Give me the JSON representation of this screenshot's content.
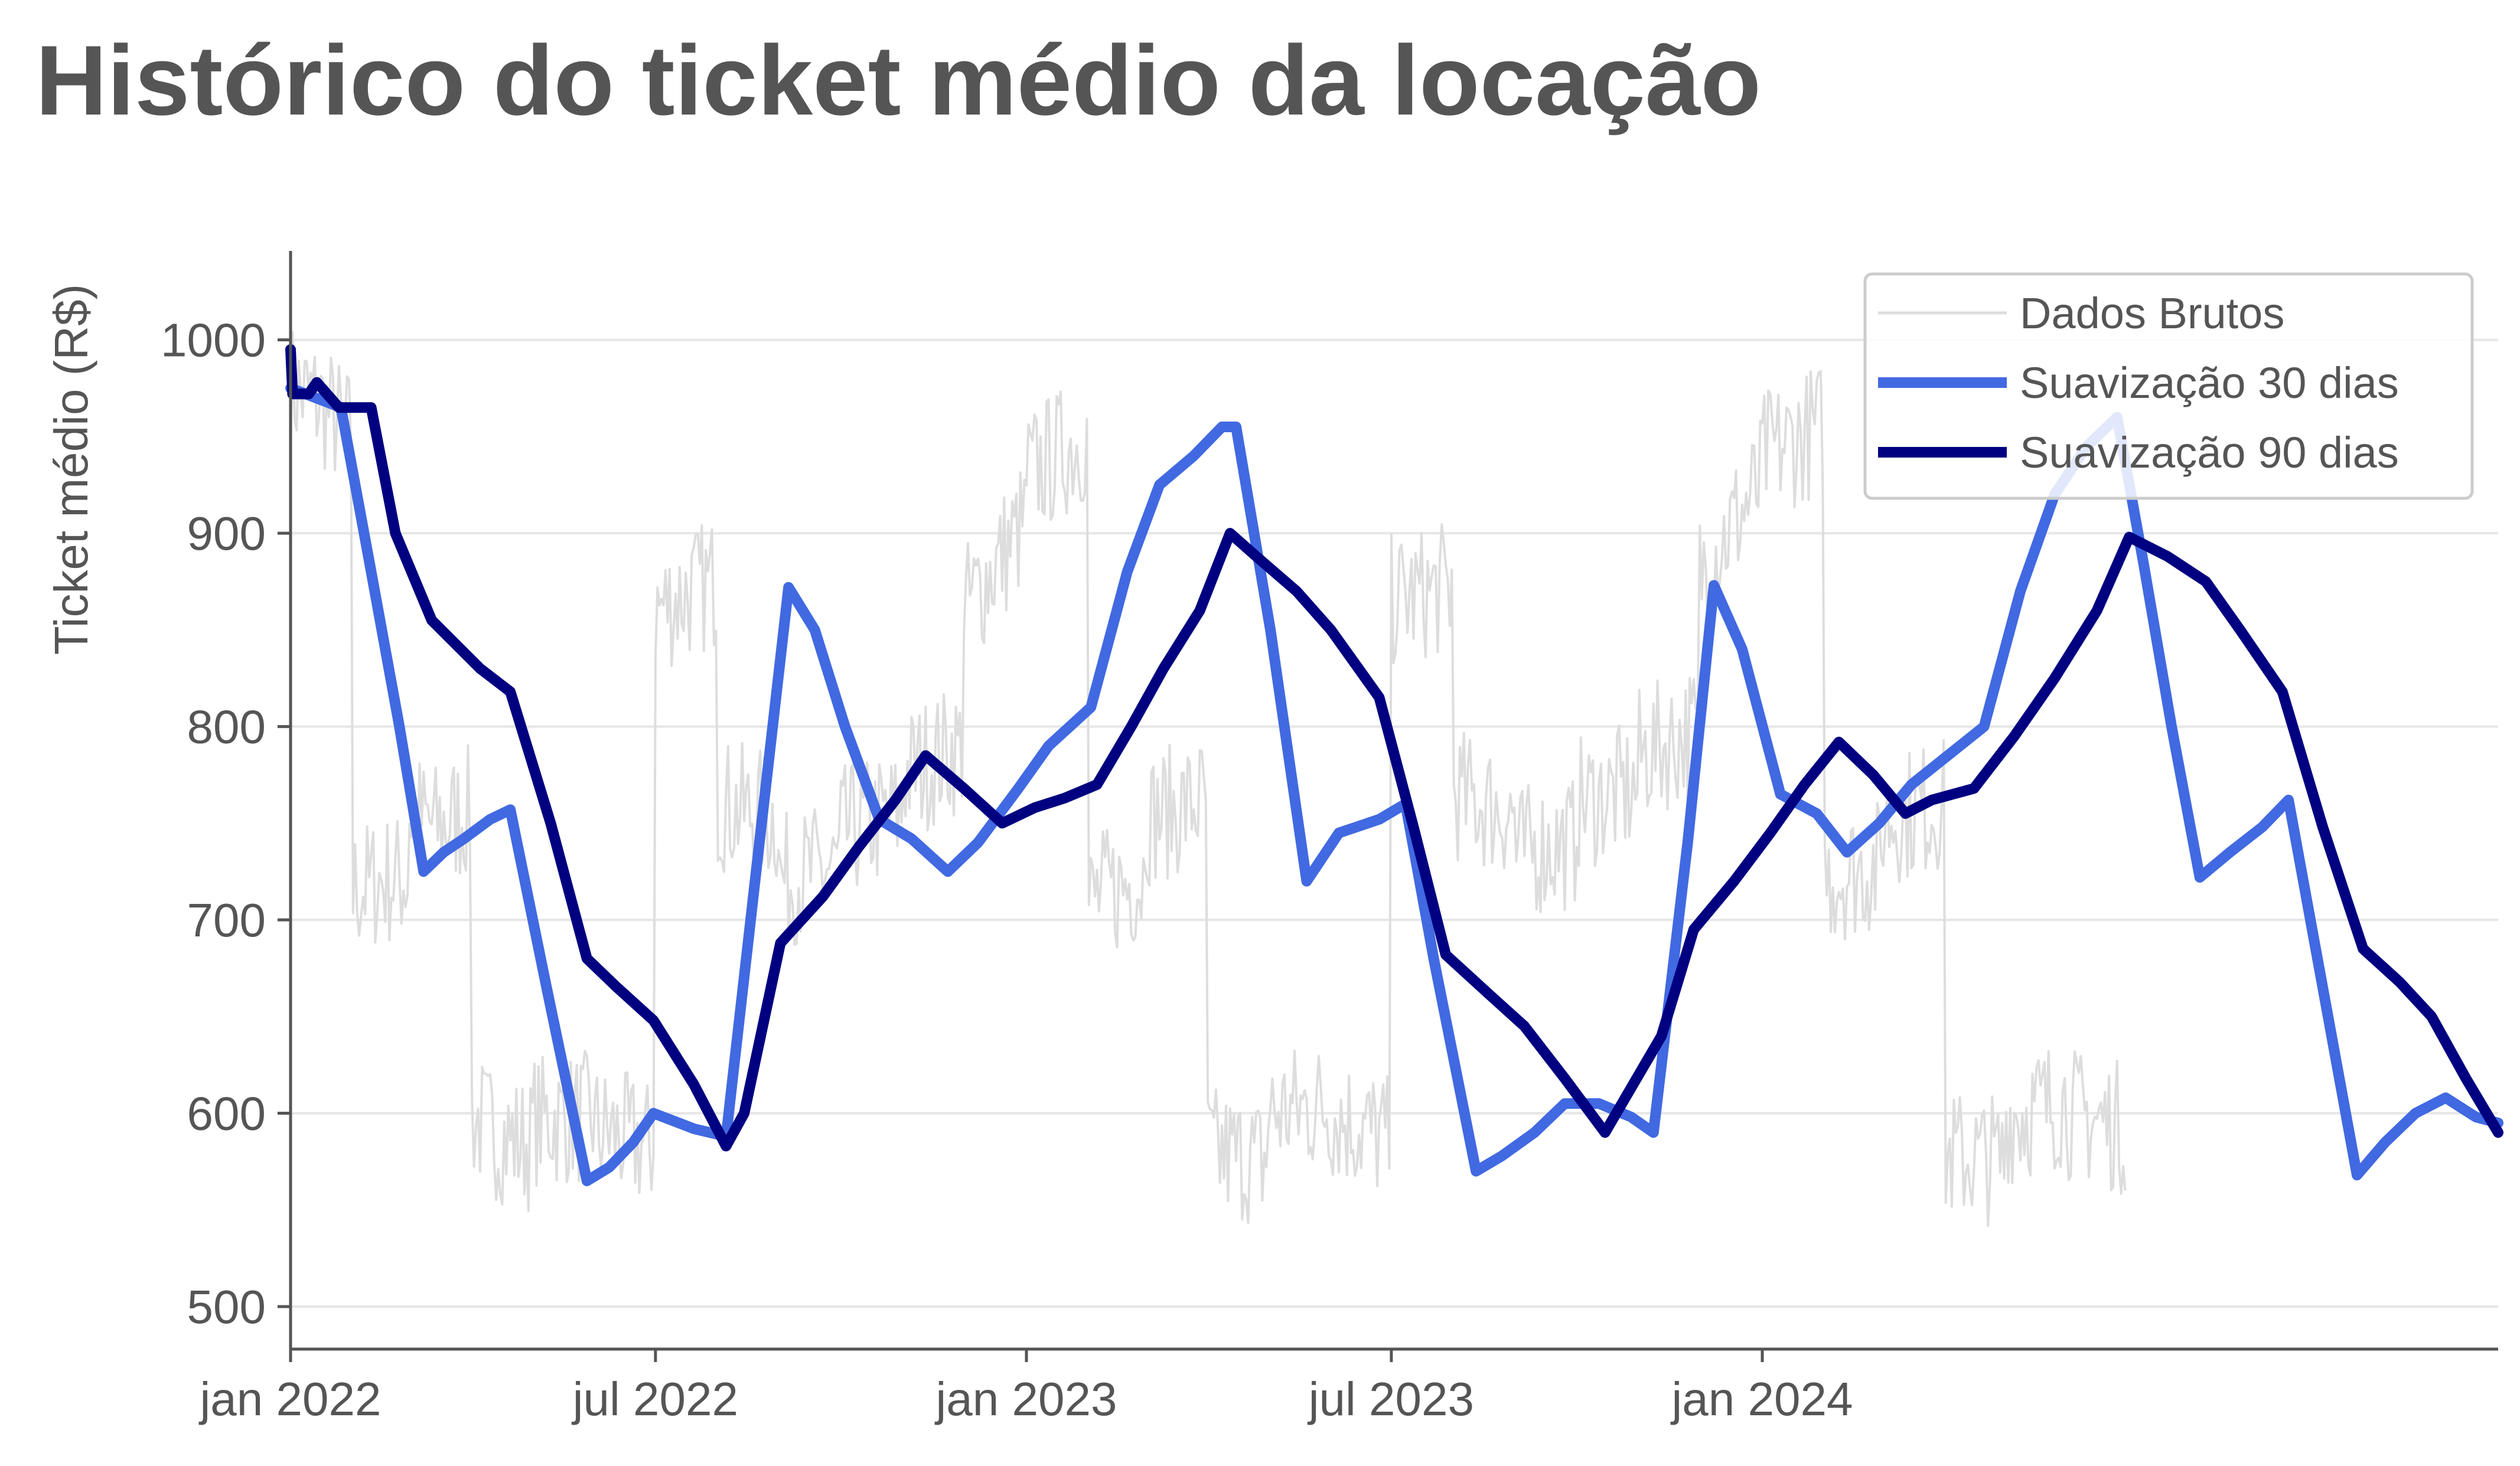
{
  "chart_data": {
    "type": "line",
    "title": "Histórico do ticket médio da locação",
    "xlabel": "",
    "ylabel": "Ticket médio (R$)",
    "ylim": [
      478,
      1046
    ],
    "x_range": [
      "2022-01-01",
      "2024-12-31"
    ],
    "grid": "horizontal",
    "legend_position": "top-right",
    "yticks": [
      500,
      600,
      700,
      800,
      900,
      1000
    ],
    "xticks": [
      {
        "date": "2022-01-01",
        "label": "jan 2022"
      },
      {
        "date": "2022-07-01",
        "label": "jul 2022"
      },
      {
        "date": "2023-01-01",
        "label": "jan 2023"
      },
      {
        "date": "2023-07-01",
        "label": "jul 2023"
      },
      {
        "date": "2024-01-01",
        "label": "jan 2024"
      }
    ],
    "series": [
      {
        "name": "Dados Brutos",
        "color": "#dddddd",
        "style": "thin-noisy",
        "points": [
          [
            "2022-01-01",
            975
          ],
          [
            "2022-01-15",
            968
          ],
          [
            "2022-01-31",
            950
          ],
          [
            "2022-02-01",
            715
          ],
          [
            "2022-02-14",
            720
          ],
          [
            "2022-02-28",
            722
          ],
          [
            "2022-03-01",
            755
          ],
          [
            "2022-03-14",
            748
          ],
          [
            "2022-03-31",
            756
          ],
          [
            "2022-04-01",
            598
          ],
          [
            "2022-04-15",
            588
          ],
          [
            "2022-04-30",
            584
          ],
          [
            "2022-05-01",
            596
          ],
          [
            "2022-05-31",
            598
          ],
          [
            "2022-06-01",
            592
          ],
          [
            "2022-06-30",
            582
          ],
          [
            "2022-07-01",
            860
          ],
          [
            "2022-07-15",
            868
          ],
          [
            "2022-07-31",
            875
          ],
          [
            "2022-08-01",
            760
          ],
          [
            "2022-08-31",
            752
          ],
          [
            "2022-09-01",
            720
          ],
          [
            "2022-09-30",
            728
          ],
          [
            "2022-10-01",
            745
          ],
          [
            "2022-10-31",
            755
          ],
          [
            "2022-11-01",
            775
          ],
          [
            "2022-11-30",
            790
          ],
          [
            "2022-12-01",
            860
          ],
          [
            "2022-12-31",
            905
          ],
          [
            "2023-01-01",
            930
          ],
          [
            "2023-01-31",
            950
          ],
          [
            "2023-02-01",
            710
          ],
          [
            "2023-02-28",
            722
          ],
          [
            "2023-03-01",
            752
          ],
          [
            "2023-03-31",
            762
          ],
          [
            "2023-04-01",
            580
          ],
          [
            "2023-04-30",
            575
          ],
          [
            "2023-05-01",
            600
          ],
          [
            "2023-05-31",
            604
          ],
          [
            "2023-06-01",
            600
          ],
          [
            "2023-06-30",
            586
          ],
          [
            "2023-07-01",
            865
          ],
          [
            "2023-07-31",
            872
          ],
          [
            "2023-08-01",
            765
          ],
          [
            "2023-08-31",
            755
          ],
          [
            "2023-09-01",
            735
          ],
          [
            "2023-09-30",
            740
          ],
          [
            "2023-10-01",
            760
          ],
          [
            "2023-10-31",
            768
          ],
          [
            "2023-11-01",
            785
          ],
          [
            "2023-11-30",
            798
          ],
          [
            "2023-12-01",
            880
          ],
          [
            "2023-12-31",
            925
          ],
          [
            "2024-01-01",
            940
          ],
          [
            "2024-01-31",
            955
          ],
          [
            "2024-02-01",
            722
          ],
          [
            "2024-02-29",
            728
          ],
          [
            "2024-03-01",
            752
          ],
          [
            "2024-03-31",
            760
          ],
          [
            "2024-04-01",
            578
          ],
          [
            "2024-04-30",
            576
          ],
          [
            "2024-05-01",
            598
          ],
          [
            "2024-05-31",
            606
          ],
          [
            "2024-06-01",
            600
          ],
          [
            "2024-06-30",
            592
          ]
        ]
      },
      {
        "name": "Suavização 30 dias",
        "color": "#4169e1",
        "points": [
          [
            "2022-01-01",
            975
          ],
          [
            "2022-01-26",
            965
          ],
          [
            "2022-02-10",
            880
          ],
          [
            "2022-02-24",
            800
          ],
          [
            "2022-03-08",
            725
          ],
          [
            "2022-03-18",
            735
          ],
          [
            "2022-03-28",
            742
          ],
          [
            "2022-04-10",
            752
          ],
          [
            "2022-04-20",
            757
          ],
          [
            "2022-05-08",
            665
          ],
          [
            "2022-05-28",
            565
          ],
          [
            "2022-06-08",
            572
          ],
          [
            "2022-06-20",
            585
          ],
          [
            "2022-06-30",
            600
          ],
          [
            "2022-07-20",
            592
          ],
          [
            "2022-08-05",
            588
          ],
          [
            "2022-08-21",
            735
          ],
          [
            "2022-09-05",
            872
          ],
          [
            "2022-09-18",
            850
          ],
          [
            "2022-10-03",
            800
          ],
          [
            "2022-10-20",
            752
          ],
          [
            "2022-11-05",
            742
          ],
          [
            "2022-11-23",
            725
          ],
          [
            "2022-12-08",
            740
          ],
          [
            "2022-12-28",
            768
          ],
          [
            "2023-01-12",
            790
          ],
          [
            "2023-02-02",
            810
          ],
          [
            "2023-02-20",
            880
          ],
          [
            "2023-03-08",
            925
          ],
          [
            "2023-03-25",
            940
          ],
          [
            "2023-04-08",
            955
          ],
          [
            "2023-04-15",
            955
          ],
          [
            "2023-05-02",
            850
          ],
          [
            "2023-05-20",
            720
          ],
          [
            "2023-06-05",
            745
          ],
          [
            "2023-06-25",
            752
          ],
          [
            "2023-07-08",
            760
          ],
          [
            "2023-07-22",
            680
          ],
          [
            "2023-08-12",
            570
          ],
          [
            "2023-08-25",
            578
          ],
          [
            "2023-09-10",
            590
          ],
          [
            "2023-09-25",
            605
          ],
          [
            "2023-10-12",
            605
          ],
          [
            "2023-10-28",
            598
          ],
          [
            "2023-11-08",
            590
          ],
          [
            "2023-11-25",
            740
          ],
          [
            "2023-12-08",
            873
          ],
          [
            "2023-12-22",
            840
          ],
          [
            "2024-01-10",
            765
          ],
          [
            "2024-01-28",
            755
          ],
          [
            "2024-02-12",
            735
          ],
          [
            "2024-02-28",
            750
          ],
          [
            "2024-03-15",
            770
          ],
          [
            "2024-04-02",
            785
          ],
          [
            "2024-04-20",
            800
          ],
          [
            "2024-05-08",
            870
          ],
          [
            "2024-05-25",
            920
          ],
          [
            "2024-06-10",
            945
          ],
          [
            "2024-06-25",
            960
          ],
          [
            "2024-07-08",
            885
          ],
          [
            "2024-07-22",
            800
          ],
          [
            "2024-08-05",
            722
          ],
          [
            "2024-08-20",
            735
          ],
          [
            "2024-09-05",
            748
          ],
          [
            "2024-09-18",
            762
          ],
          [
            "2024-10-05",
            665
          ],
          [
            "2024-10-22",
            568
          ],
          [
            "2024-11-05",
            585
          ],
          [
            "2024-11-20",
            600
          ],
          [
            "2024-12-05",
            608
          ],
          [
            "2024-12-20",
            598
          ],
          [
            "2024-12-31",
            595
          ]
        ]
      },
      {
        "name": "Suavização 90 dias",
        "color": "#000080",
        "points": [
          [
            "2022-01-01",
            995
          ],
          [
            "2022-01-02",
            972
          ],
          [
            "2022-01-10",
            972
          ],
          [
            "2022-01-14",
            978
          ],
          [
            "2022-01-25",
            965
          ],
          [
            "2022-02-02",
            965
          ],
          [
            "2022-02-10",
            965
          ],
          [
            "2022-02-22",
            900
          ],
          [
            "2022-03-12",
            855
          ],
          [
            "2022-04-05",
            830
          ],
          [
            "2022-04-20",
            818
          ],
          [
            "2022-05-10",
            750
          ],
          [
            "2022-05-28",
            680
          ],
          [
            "2022-06-12",
            665
          ],
          [
            "2022-06-30",
            648
          ],
          [
            "2022-07-20",
            615
          ],
          [
            "2022-08-05",
            583
          ],
          [
            "2022-08-14",
            600
          ],
          [
            "2022-09-01",
            688
          ],
          [
            "2022-09-22",
            712
          ],
          [
            "2022-10-10",
            738
          ],
          [
            "2022-10-28",
            762
          ],
          [
            "2022-11-12",
            785
          ],
          [
            "2022-12-01",
            768
          ],
          [
            "2022-12-20",
            750
          ],
          [
            "2023-01-05",
            758
          ],
          [
            "2023-01-20",
            763
          ],
          [
            "2023-02-05",
            770
          ],
          [
            "2023-02-22",
            800
          ],
          [
            "2023-03-10",
            830
          ],
          [
            "2023-03-28",
            860
          ],
          [
            "2023-04-12",
            900
          ],
          [
            "2023-04-25",
            888
          ],
          [
            "2023-05-15",
            870
          ],
          [
            "2023-06-01",
            850
          ],
          [
            "2023-06-25",
            815
          ],
          [
            "2023-07-12",
            748
          ],
          [
            "2023-07-28",
            682
          ],
          [
            "2023-08-18",
            662
          ],
          [
            "2023-09-05",
            645
          ],
          [
            "2023-09-25",
            618
          ],
          [
            "2023-10-15",
            590
          ],
          [
            "2023-11-12",
            640
          ],
          [
            "2023-11-28",
            695
          ],
          [
            "2023-12-18",
            720
          ],
          [
            "2024-01-05",
            745
          ],
          [
            "2024-01-22",
            770
          ],
          [
            "2024-02-08",
            792
          ],
          [
            "2024-02-25",
            775
          ],
          [
            "2024-03-12",
            755
          ],
          [
            "2024-03-25",
            762
          ],
          [
            "2024-04-15",
            768
          ],
          [
            "2024-05-05",
            795
          ],
          [
            "2024-05-25",
            825
          ],
          [
            "2024-06-15",
            860
          ],
          [
            "2024-07-01",
            898
          ],
          [
            "2024-07-20",
            888
          ],
          [
            "2024-08-08",
            875
          ],
          [
            "2024-08-25",
            850
          ],
          [
            "2024-09-15",
            818
          ],
          [
            "2024-10-05",
            748
          ],
          [
            "2024-10-25",
            685
          ],
          [
            "2024-11-12",
            668
          ],
          [
            "2024-11-28",
            650
          ],
          [
            "2024-12-15",
            618
          ],
          [
            "2024-12-31",
            590
          ]
        ]
      }
    ]
  }
}
